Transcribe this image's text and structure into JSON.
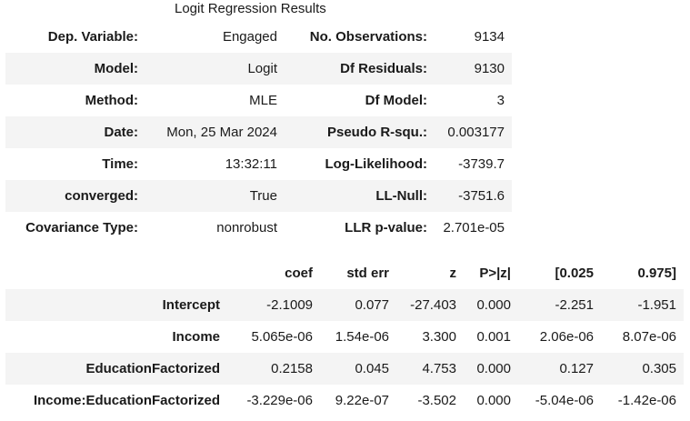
{
  "caption": "Logit Regression Results",
  "summary_rows": [
    {
      "label1": "Dep. Variable:",
      "value1": "Engaged",
      "label2": "No. Observations:",
      "value2": "9134"
    },
    {
      "label1": "Model:",
      "value1": "Logit",
      "label2": "Df Residuals:",
      "value2": "9130"
    },
    {
      "label1": "Method:",
      "value1": "MLE",
      "label2": "Df Model:",
      "value2": "3"
    },
    {
      "label1": "Date:",
      "value1": "Mon, 25 Mar 2024",
      "label2": "Pseudo R-squ.:",
      "value2": "0.003177"
    },
    {
      "label1": "Time:",
      "value1": "13:32:11",
      "label2": "Log-Likelihood:",
      "value2": "-3739.7"
    },
    {
      "label1": "converged:",
      "value1": "True",
      "label2": "LL-Null:",
      "value2": "-3751.6"
    },
    {
      "label1": "Covariance Type:",
      "value1": "nonrobust",
      "label2": "LLR p-value:",
      "value2": "2.701e-05"
    }
  ],
  "coef_table": {
    "headers": [
      "",
      "coef",
      "std err",
      "z",
      "P>|z|",
      "[0.025",
      "0.975]"
    ],
    "rows": [
      {
        "name": "Intercept",
        "coef": "-2.1009",
        "std_err": "0.077",
        "z": "-27.403",
        "p": "0.000",
        "ci_low": "-2.251",
        "ci_high": "-1.951"
      },
      {
        "name": "Income",
        "coef": "5.065e-06",
        "std_err": "1.54e-06",
        "z": "3.300",
        "p": "0.001",
        "ci_low": "2.06e-06",
        "ci_high": "8.07e-06"
      },
      {
        "name": "EducationFactorized",
        "coef": "0.2158",
        "std_err": "0.045",
        "z": "4.753",
        "p": "0.000",
        "ci_low": "0.127",
        "ci_high": "0.305"
      },
      {
        "name": "Income:EducationFactorized",
        "coef": "-3.229e-06",
        "std_err": "9.22e-07",
        "z": "-3.502",
        "p": "0.000",
        "ci_low": "-5.04e-06",
        "ci_high": "-1.42e-06"
      }
    ]
  }
}
